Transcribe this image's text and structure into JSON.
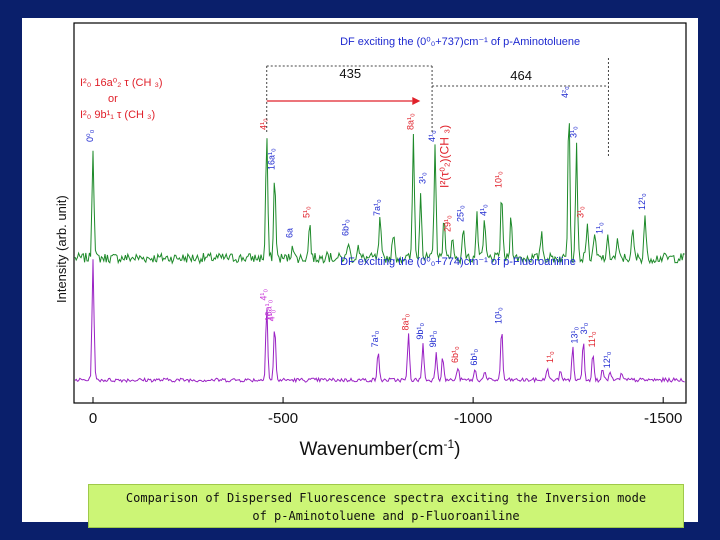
{
  "caption": {
    "line1": "Comparison of Dispersed Fluorescence spectra exciting the Inversion mode",
    "line2": "of p-Aminotoluene and  p-Fluoroaniline"
  },
  "colors": {
    "background": "#0a1f6b",
    "caption_bg": "#ccf576",
    "top_spectrum": "#1e8a2a",
    "bottom_spectrum": "#9a22c4",
    "label_red": "#e0202a",
    "label_blue": "#1f2ad0",
    "label_magenta": "#c83ad8"
  },
  "chart_data": {
    "type": "line",
    "xlabel_main": "Wavenumber(cm",
    "xlabel_sup": "-1",
    "xlabel_end": ")",
    "ylabel": "Intensity (arb. unit)",
    "xlim": [
      50,
      -1560
    ],
    "x_ticks": [
      0,
      -500,
      -1000,
      -1500
    ],
    "x_tick_labels": [
      "0",
      "-500",
      "-1000",
      "-1500"
    ],
    "series": [
      {
        "name": "DF exciting the (0⁰₀+737)cm⁻¹ of p-Aminotoluene",
        "peaks": [
          {
            "x": 0,
            "h": 0.56
          },
          {
            "x": -457,
            "h": 0.62
          },
          {
            "x": -478,
            "h": 0.42
          },
          {
            "x": -525,
            "h": 0.08
          },
          {
            "x": -570,
            "h": 0.18
          },
          {
            "x": -615,
            "h": 0.05
          },
          {
            "x": -672,
            "h": 0.09
          },
          {
            "x": -697,
            "h": 0.06
          },
          {
            "x": -755,
            "h": 0.19
          },
          {
            "x": -790,
            "h": 0.13
          },
          {
            "x": -843,
            "h": 0.62
          },
          {
            "x": -862,
            "h": 0.35
          },
          {
            "x": -900,
            "h": 0.56
          },
          {
            "x": -923,
            "h": 0.21
          },
          {
            "x": -945,
            "h": 0.11
          },
          {
            "x": -975,
            "h": 0.16
          },
          {
            "x": -1010,
            "h": 0.21
          },
          {
            "x": -1030,
            "h": 0.19
          },
          {
            "x": -1075,
            "h": 0.33
          },
          {
            "x": -1100,
            "h": 0.22
          },
          {
            "x": -1180,
            "h": 0.14
          },
          {
            "x": -1252,
            "h": 0.78
          },
          {
            "x": -1272,
            "h": 0.58
          },
          {
            "x": -1300,
            "h": 0.18
          },
          {
            "x": -1320,
            "h": 0.12
          },
          {
            "x": -1355,
            "h": 0.1
          },
          {
            "x": -1380,
            "h": 0.08
          },
          {
            "x": -1420,
            "h": 0.14
          },
          {
            "x": -1452,
            "h": 0.22
          }
        ],
        "labels": [
          {
            "x": 0,
            "text": "0⁰₀"
          },
          {
            "x": -457,
            "text": "4¹₀"
          },
          {
            "x": -477,
            "text": "16a¹₀"
          },
          {
            "x": -525,
            "text": "6a"
          },
          {
            "x": -570,
            "text": "5¹₀"
          },
          {
            "x": -672,
            "text": "6b¹₀"
          },
          {
            "x": -755,
            "text": "7a¹₀"
          },
          {
            "x": -843,
            "text": "8a¹₀"
          },
          {
            "x": -875,
            "text": "3¹₀"
          },
          {
            "x": -900,
            "text": "4¹₀"
          },
          {
            "x": -940,
            "text": "29¹₀"
          },
          {
            "x": -975,
            "text": "25¹₀"
          },
          {
            "x": -1035,
            "text": "4¹₀"
          },
          {
            "x": -1075,
            "text": "10¹₀"
          },
          {
            "x": -1250,
            "text": "4²₀"
          },
          {
            "x": -1272,
            "text": "3¹₀"
          },
          {
            "x": -1290,
            "text": "3¹₀"
          },
          {
            "x": -1340,
            "text": "1¹₀"
          },
          {
            "x": -1452,
            "text": "12¹₀"
          }
        ]
      },
      {
        "name": "DF exciting the (0⁰₀+774)cm⁻¹ of p-Fluoroaniline",
        "peaks": [
          {
            "x": 0,
            "h": 0.92
          },
          {
            "x": -457,
            "h": 0.58
          },
          {
            "x": -478,
            "h": 0.42
          },
          {
            "x": -750,
            "h": 0.22
          },
          {
            "x": -830,
            "h": 0.35
          },
          {
            "x": -868,
            "h": 0.28
          },
          {
            "x": -903,
            "h": 0.22
          },
          {
            "x": -920,
            "h": 0.18
          },
          {
            "x": -960,
            "h": 0.1
          },
          {
            "x": -1005,
            "h": 0.08
          },
          {
            "x": -1030,
            "h": 0.07
          },
          {
            "x": -1075,
            "h": 0.4
          },
          {
            "x": -1195,
            "h": 0.1
          },
          {
            "x": -1230,
            "h": 0.08
          },
          {
            "x": -1262,
            "h": 0.25
          },
          {
            "x": -1290,
            "h": 0.32
          },
          {
            "x": -1315,
            "h": 0.22
          },
          {
            "x": -1340,
            "h": 0.1
          },
          {
            "x": -1360,
            "h": 0.06
          },
          {
            "x": -1390,
            "h": 0.05
          }
        ],
        "labels": [
          {
            "x": -457,
            "text": "4¹₀"
          },
          {
            "x": -470,
            "text": "16a¹₀"
          },
          {
            "x": -478,
            "text": "4¹₀"
          },
          {
            "x": -750,
            "text": "7a¹₀"
          },
          {
            "x": -830,
            "text": "8a¹₀"
          },
          {
            "x": -868,
            "text": "9b¹₀"
          },
          {
            "x": -903,
            "text": "9b¹₀"
          },
          {
            "x": -960,
            "text": "6b¹₀"
          },
          {
            "x": -1010,
            "text": "6b¹₀"
          },
          {
            "x": -1075,
            "text": "10¹₀"
          },
          {
            "x": -1210,
            "text": "1¹₀"
          },
          {
            "x": -1275,
            "text": "13¹₀"
          },
          {
            "x": -1300,
            "text": "3¹₀"
          },
          {
            "x": -1320,
            "text": "11¹₀"
          },
          {
            "x": -1360,
            "text": "12¹₀"
          }
        ]
      }
    ],
    "annotations": {
      "assign_line1": "I²₀ 16a⁰₂ τ (CH ₃)",
      "or": "or",
      "assign_line2": "I²₀ 9b¹₁ τ (CH ₃)",
      "gap_435": "435",
      "gap_464": "464",
      "rot_label": "I²(τ⁰₂)(CH ₃)"
    }
  }
}
